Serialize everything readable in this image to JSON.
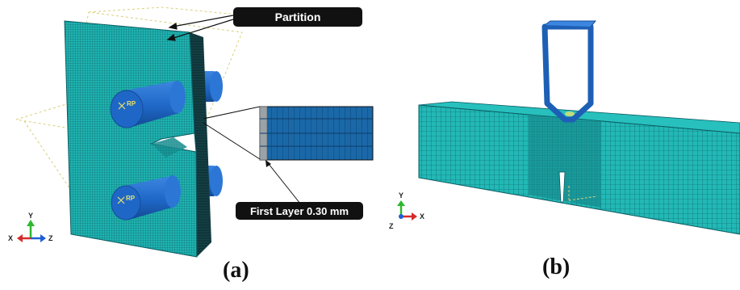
{
  "panel_a": {
    "label": "(a)",
    "callouts": {
      "partition": "Partition",
      "first_layer": "First Layer 0.30 mm"
    },
    "reference_point_label": "RP",
    "triad": {
      "x": "X",
      "y": "Y",
      "z": "Z"
    }
  },
  "panel_b": {
    "label": "(b)",
    "triad": {
      "x": "X",
      "y": "Y",
      "z": "Z"
    }
  },
  "colors": {
    "mesh_fill": "#1fb3b0",
    "mesh_line": "#0b5c62",
    "pin_blue": "#1f67c7",
    "pin_dark": "#154c99",
    "inset_fill": "#1a68a8",
    "callout_bg": "#111111",
    "partition_dash": "#d9d07a"
  },
  "icons": {
    "coordinate_triad": "xyz-axis-triad-icon",
    "reference_point": "crosshair-marker-icon"
  }
}
